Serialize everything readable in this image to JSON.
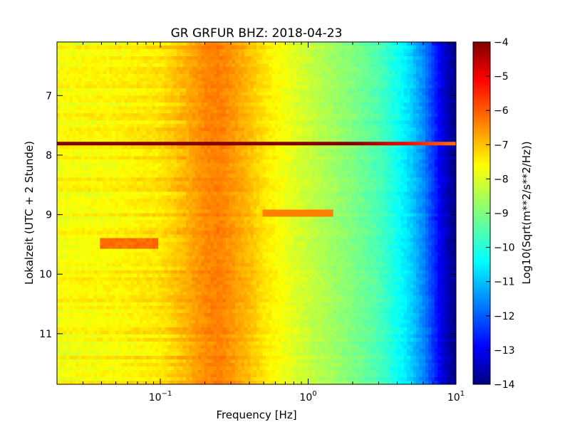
{
  "chart_data": {
    "type": "heatmap",
    "title": "GR GRFUR BHZ: 2018-04-23",
    "xlabel": "Frequency [Hz]",
    "ylabel": "Lokalzeit (UTC + 2 Stunde)",
    "x_scale": "log",
    "xlim": [
      0.02,
      10
    ],
    "x_ticks": [
      {
        "value": 0.1,
        "base": "10",
        "exp": "−1"
      },
      {
        "value": 1,
        "base": "10",
        "exp": "0"
      },
      {
        "value": 10,
        "base": "10",
        "exp": "1"
      }
    ],
    "ylim": [
      6.1,
      11.85
    ],
    "y_inverted": true,
    "y_ticks": [
      7,
      8,
      9,
      10,
      11
    ],
    "colorbar": {
      "label": "Log10(Sqrt(m**2/s**2/Hz))",
      "colormap": "jet",
      "range": [
        -14,
        -4
      ],
      "ticks": [
        -4,
        -5,
        -6,
        -7,
        -8,
        -9,
        -10,
        -11,
        -12,
        -13,
        -14
      ]
    },
    "noise_floor_profile": {
      "frequency_hz": [
        0.02,
        0.05,
        0.1,
        0.15,
        0.2,
        0.25,
        0.3,
        0.4,
        0.5,
        0.7,
        1,
        1.5,
        2,
        3,
        4,
        5,
        6,
        7,
        8,
        9,
        10
      ],
      "log10_amplitude": [
        -7.8,
        -7.7,
        -7.5,
        -7.0,
        -6.6,
        -6.5,
        -6.7,
        -7.1,
        -7.5,
        -7.9,
        -8.3,
        -8.7,
        -9.0,
        -9.5,
        -10.1,
        -10.7,
        -11.4,
        -12.2,
        -13.0,
        -13.6,
        -13.9
      ]
    },
    "features": [
      {
        "type": "band",
        "time": 7.8,
        "log10_amplitude": -4.0,
        "frequency_range": [
          0.02,
          10
        ]
      },
      {
        "type": "patch",
        "time_range": [
          9.38,
          9.55
        ],
        "frequency_range": [
          0.04,
          0.095
        ],
        "log10_amplitude": -6.3
      },
      {
        "type": "line",
        "time": 8.98,
        "frequency_range": [
          0.5,
          1.5
        ],
        "log10_amplitude": -6.5
      }
    ]
  }
}
